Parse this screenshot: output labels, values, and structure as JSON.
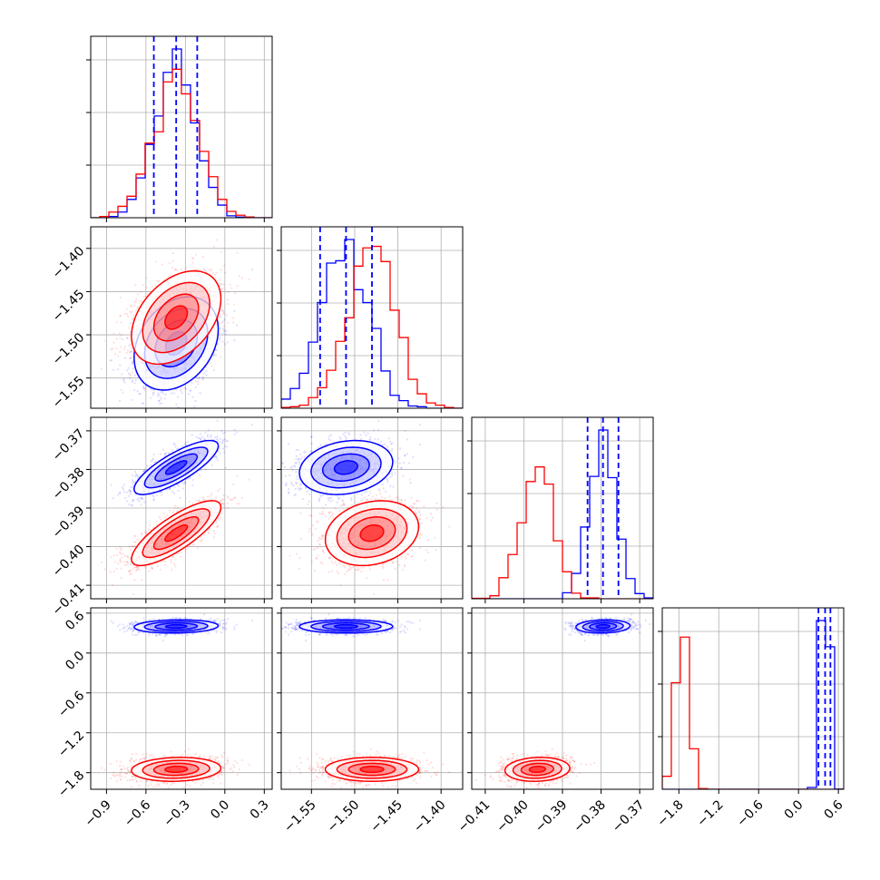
{
  "chart_data": {
    "type": "corner",
    "colors": {
      "blue": "#0000ff",
      "red": "#ff0000",
      "grid": "#b0b0b0"
    },
    "params": [
      {
        "ticks": [
          -0.9,
          -0.6,
          -0.3,
          0.0,
          0.3
        ],
        "tick_labels": [
          "−0.9",
          "−0.6",
          "−0.3",
          "0.0",
          "0.3"
        ],
        "range": [
          -1.02,
          0.36
        ]
      },
      {
        "ticks": [
          -1.55,
          -1.5,
          -1.45,
          -1.4
        ],
        "tick_labels": [
          "−1.55",
          "−1.50",
          "−1.45",
          "−1.40"
        ],
        "range": [
          -1.585,
          -1.375
        ]
      },
      {
        "ticks": [
          -0.41,
          -0.4,
          -0.39,
          -0.38,
          -0.37
        ],
        "tick_labels": [
          "−0.41",
          "−0.40",
          "−0.39",
          "−0.38",
          "−0.37"
        ],
        "range": [
          -0.4135,
          -0.3665
        ]
      },
      {
        "ticks": [
          -1.8,
          -1.2,
          -0.6,
          0.0,
          0.6
        ],
        "tick_labels": [
          "−1.8",
          "−1.2",
          "−0.6",
          "0.0",
          "0.6"
        ],
        "range": [
          -2.05,
          0.68
        ]
      }
    ],
    "series": [
      {
        "name": "blue",
        "color": "#0000ff",
        "mean": [
          -0.37,
          -1.51,
          -0.3795,
          0.4
        ],
        "sd": [
          0.16,
          0.027,
          0.0035,
          0.05
        ],
        "corr": [
          [
            1,
            0.3,
            0.8,
            0.1
          ],
          [
            0.3,
            1,
            0.2,
            0.0
          ],
          [
            0.8,
            0.2,
            1,
            0.1
          ],
          [
            0.1,
            0.0,
            0.1,
            1
          ]
        ],
        "quantile_lines": [
          [
            -0.54,
            -0.37,
            -0.21
          ],
          [
            -1.54,
            -1.51,
            -1.48
          ],
          [
            -0.3835,
            -0.3795,
            -0.3755
          ],
          [
            0.3,
            0.4,
            0.48
          ]
        ]
      },
      {
        "name": "red",
        "color": "#ff0000",
        "mean": [
          -0.37,
          -1.48,
          -0.3965,
          -1.75
        ],
        "sd": [
          0.17,
          0.027,
          0.0042,
          0.09
        ],
        "corr": [
          [
            1,
            0.4,
            0.8,
            0.1
          ],
          [
            0.4,
            1,
            0.2,
            0.0
          ],
          [
            0.8,
            0.2,
            1,
            0.1
          ],
          [
            0.1,
            0.0,
            0.1,
            1
          ]
        ]
      }
    ],
    "histogram_bins": 20,
    "contour_levels_sigma": [
      0.5,
      1.0,
      1.5,
      2.0
    ]
  }
}
